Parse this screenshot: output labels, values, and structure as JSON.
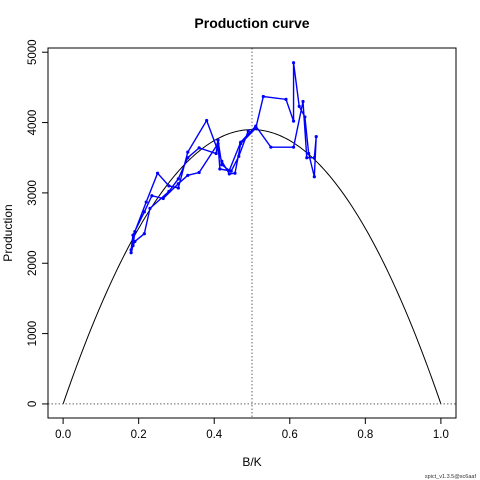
{
  "chart_data": {
    "type": "line",
    "title": "Production curve",
    "xlabel": "B/K",
    "ylabel": "Production",
    "xlim": [
      -0.04,
      1.04
    ],
    "ylim": [
      -200,
      5060
    ],
    "x_ticks": [
      "0.0",
      "0.2",
      "0.4",
      "0.6",
      "0.8",
      "1.0"
    ],
    "y_ticks": [
      "0",
      "1000",
      "2000",
      "3000",
      "4000",
      "5000"
    ],
    "x_tick_values": [
      0,
      0.2,
      0.4,
      0.6,
      0.8,
      1.0
    ],
    "y_tick_values": [
      0,
      1000,
      2000,
      3000,
      4000,
      5000
    ],
    "grid": false,
    "footnote": "spict_v1.3.5@sc6aaf",
    "curve": {
      "type": "parabola",
      "peak_x": 0.5,
      "peak_y": 3900,
      "color": "#000000"
    },
    "reference_lines": {
      "vertical_x": 0.5,
      "horizontal_y": 0,
      "style": "dotted",
      "color": "#666666"
    },
    "series": [
      {
        "color": "#0000ff",
        "points": [
          [
            0.18,
            2150
          ],
          [
            0.185,
            2250
          ],
          [
            0.19,
            2450
          ],
          [
            0.22,
            2870
          ],
          [
            0.25,
            3280
          ],
          [
            0.28,
            3100
          ],
          [
            0.305,
            3070
          ],
          [
            0.33,
            3580
          ],
          [
            0.38,
            4030
          ],
          [
            0.42,
            3450
          ],
          [
            0.44,
            3270
          ],
          [
            0.455,
            3280
          ],
          [
            0.47,
            3700
          ],
          [
            0.51,
            3920
          ],
          [
            0.53,
            4370
          ],
          [
            0.59,
            4330
          ],
          [
            0.61,
            4020
          ],
          [
            0.61,
            4850
          ],
          [
            0.625,
            4230
          ],
          [
            0.64,
            4080
          ],
          [
            0.65,
            3560
          ],
          [
            0.665,
            3230
          ],
          [
            0.67,
            3800
          ],
          [
            0.665,
            3500
          ],
          [
            0.645,
            3500
          ],
          [
            0.635,
            4300
          ],
          [
            0.61,
            3650
          ],
          [
            0.55,
            3650
          ],
          [
            0.51,
            3950
          ],
          [
            0.47,
            3720
          ],
          [
            0.44,
            3320
          ],
          [
            0.42,
            3400
          ],
          [
            0.41,
            3750
          ],
          [
            0.405,
            3560
          ],
          [
            0.36,
            3640
          ],
          [
            0.33,
            3500
          ],
          [
            0.305,
            3200
          ],
          [
            0.28,
            3020
          ],
          [
            0.23,
            2780
          ],
          [
            0.215,
            2420
          ],
          [
            0.19,
            2310
          ],
          [
            0.18,
            2190
          ],
          [
            0.185,
            2400
          ],
          [
            0.215,
            2730
          ],
          [
            0.235,
            2960
          ],
          [
            0.265,
            2920
          ],
          [
            0.305,
            3130
          ],
          [
            0.33,
            3250
          ],
          [
            0.36,
            3290
          ],
          [
            0.41,
            3700
          ],
          [
            0.415,
            3340
          ],
          [
            0.445,
            3310
          ],
          [
            0.465,
            3520
          ],
          [
            0.49,
            3880
          ]
        ]
      }
    ]
  }
}
